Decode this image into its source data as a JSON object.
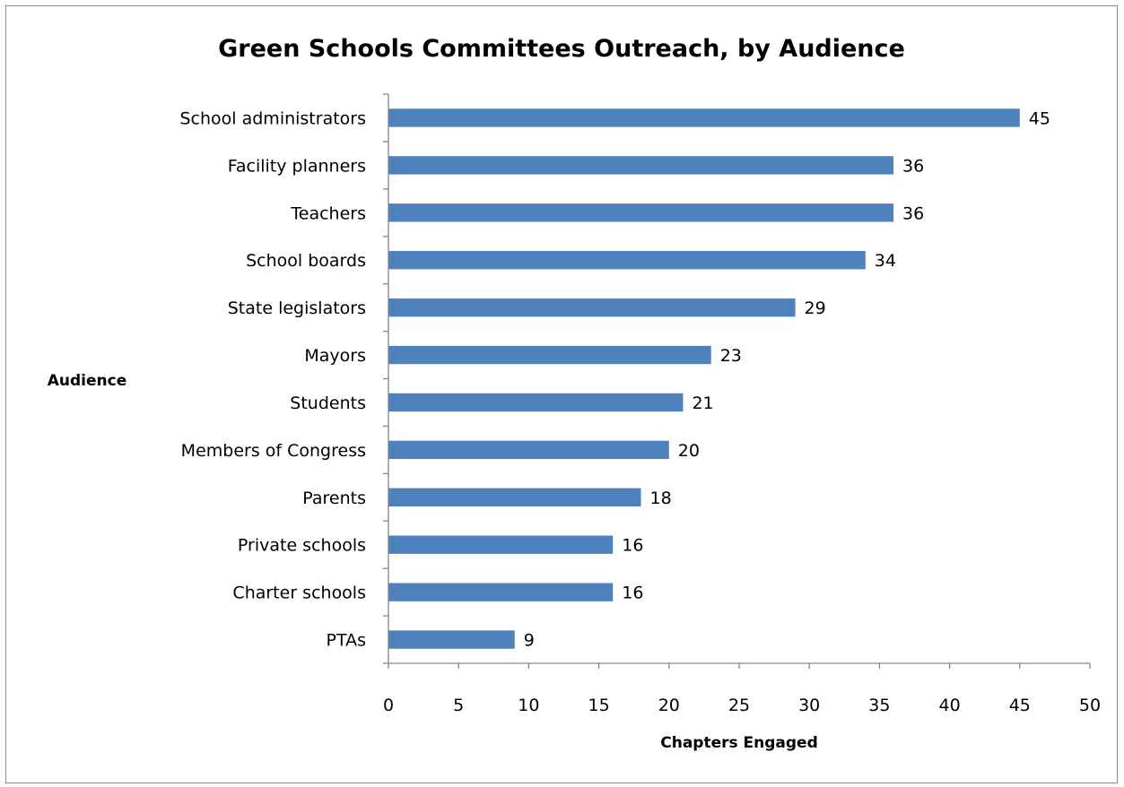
{
  "chart_data": {
    "type": "bar",
    "orientation": "horizontal",
    "title": "Green Schools Committees Outreach, by Audience",
    "xlabel": "Chapters Engaged",
    "ylabel": "Audience",
    "categories": [
      "School administrators",
      "Facility planners",
      "Teachers",
      "School boards",
      "State legislators",
      "Mayors",
      "Students",
      "Members of Congress",
      "Parents",
      "Private schools",
      "Charter schools",
      "PTAs"
    ],
    "values": [
      45,
      36,
      36,
      34,
      29,
      23,
      21,
      20,
      18,
      16,
      16,
      9
    ],
    "xlim": [
      0,
      50
    ],
    "xticks": [
      0,
      5,
      10,
      15,
      20,
      25,
      30,
      35,
      40,
      45,
      50
    ],
    "grid": false,
    "legend": "none",
    "bar_color": "#4f81bd",
    "data_labels": true
  }
}
